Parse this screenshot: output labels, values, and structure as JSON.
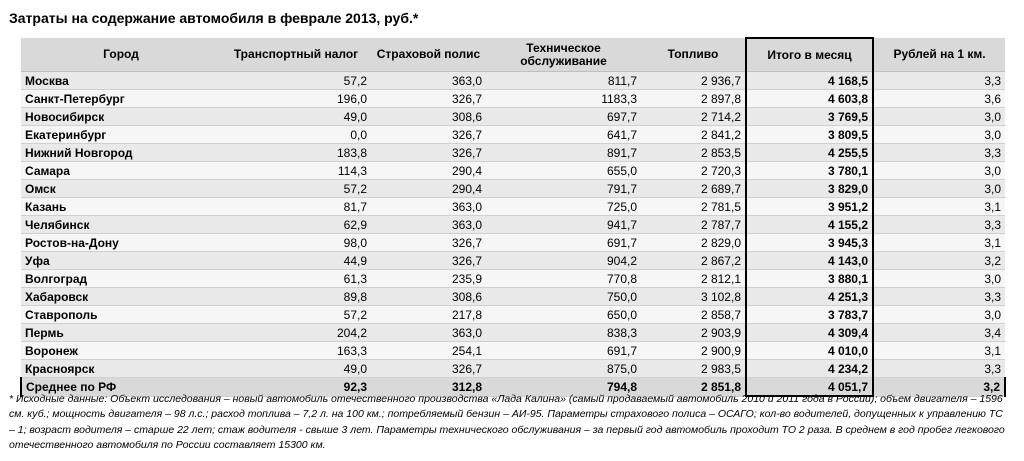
{
  "title": "Затраты на содержание автомобиля в феврале 2013, руб.*",
  "table": {
    "headers": {
      "city": "Город",
      "tax": "Транспортный налог",
      "insurance": "Страховой полис",
      "service": "Техническое обслуживание",
      "fuel": "Топливо",
      "total": "Итого в месяц",
      "per_km": "Рублей на 1 км."
    },
    "rows": [
      {
        "city": "Москва",
        "tax": "57,2",
        "insurance": "363,0",
        "service": "811,7",
        "fuel": "2 936,7",
        "total": "4 168,5",
        "per_km": "3,3"
      },
      {
        "city": "Санкт-Петербург",
        "tax": "196,0",
        "insurance": "326,7",
        "service": "1183,3",
        "fuel": "2 897,8",
        "total": "4 603,8",
        "per_km": "3,6"
      },
      {
        "city": "Новосибирск",
        "tax": "49,0",
        "insurance": "308,6",
        "service": "697,7",
        "fuel": "2 714,2",
        "total": "3 769,5",
        "per_km": "3,0"
      },
      {
        "city": "Екатеринбург",
        "tax": "0,0",
        "insurance": "326,7",
        "service": "641,7",
        "fuel": "2 841,2",
        "total": "3 809,5",
        "per_km": "3,0"
      },
      {
        "city": "Нижний Новгород",
        "tax": "183,8",
        "insurance": "326,7",
        "service": "891,7",
        "fuel": "2 853,5",
        "total": "4 255,5",
        "per_km": "3,3"
      },
      {
        "city": "Самара",
        "tax": "114,3",
        "insurance": "290,4",
        "service": "655,0",
        "fuel": "2 720,3",
        "total": "3 780,1",
        "per_km": "3,0"
      },
      {
        "city": "Омск",
        "tax": "57,2",
        "insurance": "290,4",
        "service": "791,7",
        "fuel": "2 689,7",
        "total": "3 829,0",
        "per_km": "3,0"
      },
      {
        "city": "Казань",
        "tax": "81,7",
        "insurance": "363,0",
        "service": "725,0",
        "fuel": "2 781,5",
        "total": "3 951,2",
        "per_km": "3,1"
      },
      {
        "city": "Челябинск",
        "tax": "62,9",
        "insurance": "363,0",
        "service": "941,7",
        "fuel": "2 787,7",
        "total": "4 155,2",
        "per_km": "3,3"
      },
      {
        "city": "Ростов-на-Дону",
        "tax": "98,0",
        "insurance": "326,7",
        "service": "691,7",
        "fuel": "2 829,0",
        "total": "3 945,3",
        "per_km": "3,1"
      },
      {
        "city": "Уфа",
        "tax": "44,9",
        "insurance": "326,7",
        "service": "904,2",
        "fuel": "2 867,2",
        "total": "4 143,0",
        "per_km": "3,2"
      },
      {
        "city": "Волгоград",
        "tax": "61,3",
        "insurance": "235,9",
        "service": "770,8",
        "fuel": "2 812,1",
        "total": "3 880,1",
        "per_km": "3,0"
      },
      {
        "city": "Хабаровск",
        "tax": "89,8",
        "insurance": "308,6",
        "service": "750,0",
        "fuel": "3 102,8",
        "total": "4 251,3",
        "per_km": "3,3"
      },
      {
        "city": "Ставрополь",
        "tax": "57,2",
        "insurance": "217,8",
        "service": "650,0",
        "fuel": "2 858,7",
        "total": "3 783,7",
        "per_km": "3,0"
      },
      {
        "city": "Пермь",
        "tax": "204,2",
        "insurance": "363,0",
        "service": "838,3",
        "fuel": "2 903,9",
        "total": "4 309,4",
        "per_km": "3,4"
      },
      {
        "city": "Воронеж",
        "tax": "163,3",
        "insurance": "254,1",
        "service": "691,7",
        "fuel": "2 900,9",
        "total": "4 010,0",
        "per_km": "3,1"
      },
      {
        "city": "Красноярск",
        "tax": "49,0",
        "insurance": "326,7",
        "service": "875,0",
        "fuel": "2 983,5",
        "total": "4 234,2",
        "per_km": "3,3"
      }
    ],
    "average": {
      "city": "Среднее по РФ",
      "tax": "92,3",
      "insurance": "312,8",
      "service": "794,8",
      "fuel": "2 851,8",
      "total": "4 051,7",
      "per_km": "3,2"
    }
  },
  "footnote": "* Исходные данные: Объект исследования – новый автомобиль отечественного производства «Лада Калина» (самый продаваемый автомобиль 2010 и 2011 года в России); объем двигателя – 1596 см. куб.; мощность двигателя – 98 л.с.; расход топлива – 7,2 л. на 100 км.; потребляемый бензин – АИ-95. Параметры страхового полиса – ОСАГО; кол-во водителей, допущенных к управлению ТС – 1; возраст водителя – старше 22 лет; стаж водителя - свыше 3 лет. Параметры технического обслуживания – за первый год автомобиль проходит ТО 2 раза. В среднем в год пробег легкового отечественного автомобиля по России составляет 15300 км."
}
